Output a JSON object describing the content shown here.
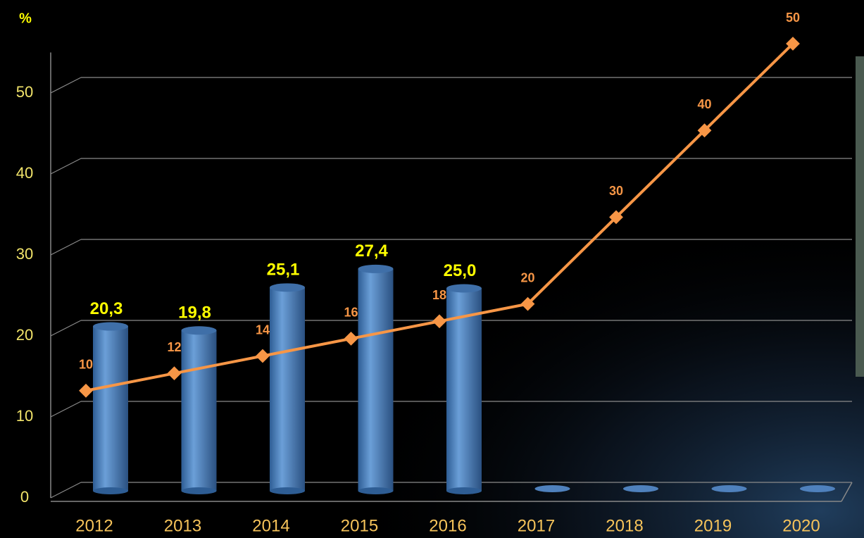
{
  "chart_data": {
    "type": "bar",
    "y_label": "%",
    "categories": [
      "2012",
      "2013",
      "2014",
      "2015",
      "2016",
      "2017",
      "2018",
      "2019",
      "2020"
    ],
    "ylim": [
      0,
      55
    ],
    "yticks": [
      0,
      10,
      20,
      30,
      40,
      50
    ],
    "grid": true,
    "y2lim": [
      0,
      50
    ],
    "series": [
      {
        "type": "bar",
        "color": "#4f81bd",
        "values": [
          20.3,
          19.8,
          25.1,
          27.4,
          25.0,
          null,
          null,
          null,
          null
        ],
        "value_labels": [
          "20,3",
          "19,8",
          "25,1",
          "27,4",
          "25,0",
          null,
          null,
          null,
          null
        ]
      },
      {
        "type": "line",
        "axis": "y2",
        "color": "#f79646",
        "values": [
          10,
          12,
          14,
          16,
          18,
          20,
          30,
          40,
          50
        ]
      }
    ]
  }
}
